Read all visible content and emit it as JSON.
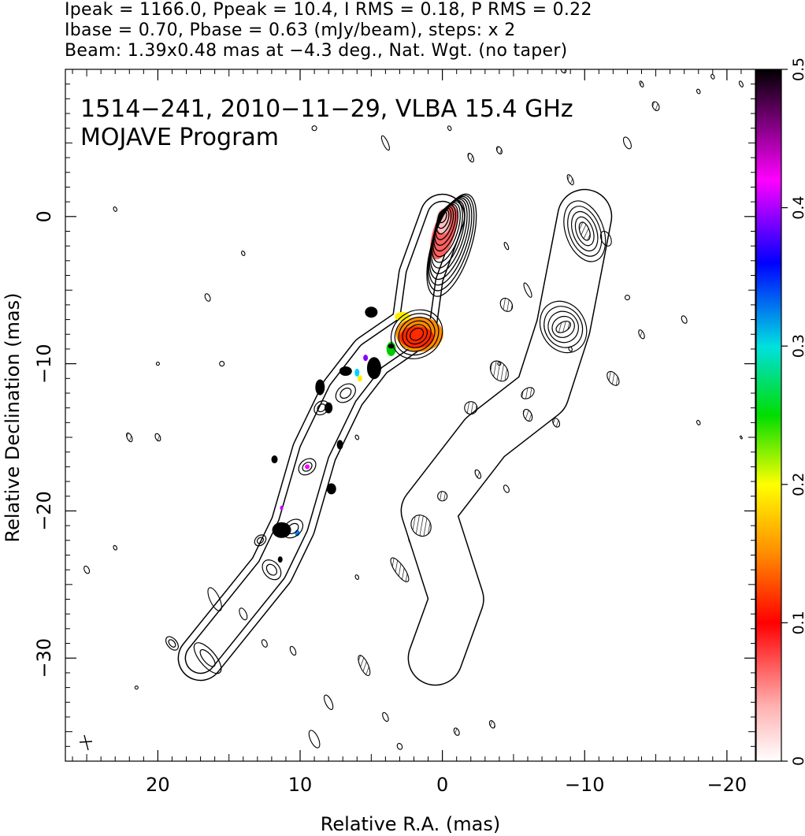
{
  "header": {
    "line1": "Ipeak = 1166.0, Ppeak = 10.4, I RMS = 0.18, P RMS = 0.22",
    "line2": "Ibase = 0.70, Pbase = 0.63 (mJy/beam), steps: x 2",
    "line3": "Beam: 1.39x0.48 mas at −4.3 deg., Nat. Wgt. (no taper)"
  },
  "annotation": {
    "line1": "1514−241, 2010−11−29, VLBA 15.4 GHz",
    "line2": "MOJAVE Program"
  },
  "chart_data": {
    "type": "heatmap",
    "title": "1514−241, 2010−11−29, VLBA 15.4 GHz",
    "subtitle": "MOJAVE Program",
    "xlabel": "Relative R.A. (mas)",
    "ylabel": "Relative Declination (mas)",
    "xlim": [
      26.5,
      -22
    ],
    "ylim": [
      -37,
      10
    ],
    "x_ticks": [
      20,
      10,
      0,
      -10,
      -20
    ],
    "x_tick_labels": [
      "20",
      "10",
      "0",
      "−10",
      "−20"
    ],
    "y_ticks": [
      0,
      -10,
      -20,
      -30
    ],
    "y_tick_labels": [
      "0",
      "−10",
      "−20",
      "−30"
    ],
    "colorbar": {
      "min": 0,
      "max": 0.5,
      "ticks": [
        0,
        0.1,
        0.2,
        0.3,
        0.4,
        0.5
      ],
      "tick_labels": [
        "0",
        "0.1",
        "0.2",
        "0.3",
        "0.4",
        "0.5"
      ],
      "colors": [
        "#ffffff",
        "#ff9a9a",
        "#ff0000",
        "#ff8c00",
        "#ffff00",
        "#00dd00",
        "#00e0e0",
        "#0000ff",
        "#ff00ff",
        "#000000"
      ]
    },
    "left_panel_total_intensity": {
      "core": {
        "x": 0,
        "y": 0
      },
      "jet_ridge": [
        {
          "x": 0,
          "y": 0
        },
        {
          "x": 1.5,
          "y": -4
        },
        {
          "x": 2,
          "y": -7.5
        },
        {
          "x": 5,
          "y": -9.5
        },
        {
          "x": 7,
          "y": -12
        },
        {
          "x": 9,
          "y": -16
        },
        {
          "x": 10.5,
          "y": -21
        },
        {
          "x": 12,
          "y": -24
        },
        {
          "x": 17,
          "y": -30
        }
      ]
    },
    "right_panel_polarization": {
      "peak": {
        "x": -10,
        "y": -1
      },
      "second_peak": {
        "x": -8.5,
        "y": -7.5
      }
    }
  }
}
